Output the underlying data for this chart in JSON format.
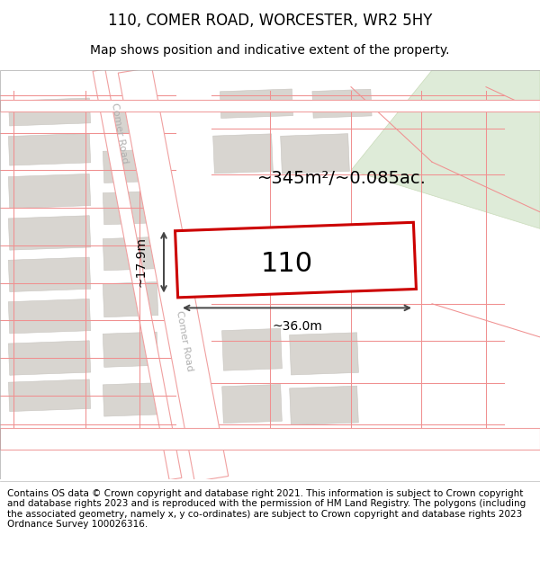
{
  "title": "110, COMER ROAD, WORCESTER, WR2 5HY",
  "subtitle": "Map shows position and indicative extent of the property.",
  "footer": "Contains OS data © Crown copyright and database right 2021. This information is subject to Crown copyright and database rights 2023 and is reproduced with the permission of HM Land Registry. The polygons (including the associated geometry, namely x, y co-ordinates) are subject to Crown copyright and database rights 2023 Ordnance Survey 100026316.",
  "map_bg": "#f2ede8",
  "road_color": "#ffffff",
  "road_outline": "#f0a0a0",
  "building_fill": "#d8d5d0",
  "building_outline": "#c8c5c0",
  "green_fill": "#deebd8",
  "green_outline": "#c8dab8",
  "property_outline": "#cc0000",
  "property_fill": "#ffffff",
  "area_text": "~345m²/~0.085ac.",
  "number_text": "110",
  "dim_width": "~36.0m",
  "dim_height": "~17.9m",
  "road_label": "Comer Road",
  "road_label_color": "#b0b0b0",
  "dim_color": "#444444",
  "title_fontsize": 12,
  "subtitle_fontsize": 10,
  "footer_fontsize": 7.5,
  "area_fontsize": 14,
  "number_fontsize": 22,
  "dim_fontsize": 10
}
